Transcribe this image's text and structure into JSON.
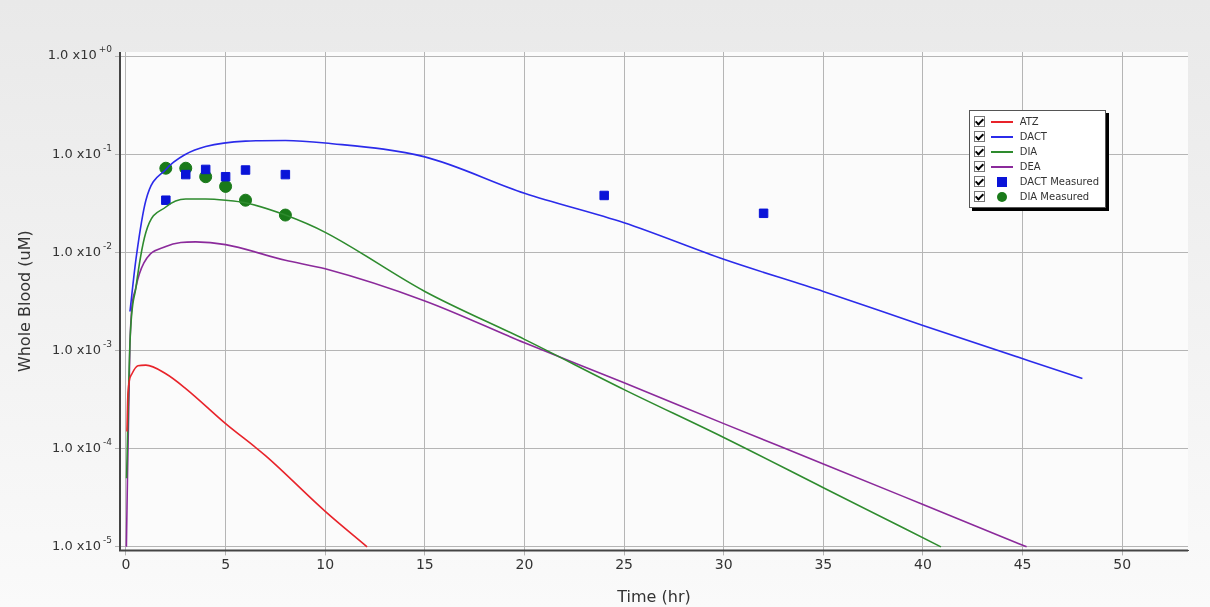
{
  "chart_data": {
    "type": "line",
    "xlabel": "Time (hr)",
    "ylabel": "Whole Blood (uM)",
    "log": "y",
    "grid": true,
    "legend": "top right",
    "line_style": "solid",
    "xlim": [
      -0.3,
      53.3
    ],
    "xticks": [
      0,
      5,
      10,
      15,
      20,
      25,
      30,
      35,
      40,
      45,
      50
    ],
    "ylim": [
      9.2e-06,
      1.1
    ],
    "yticks": [
      {
        "value": 1,
        "label": "1.0 x10$^{+0}$"
      },
      {
        "value": 0.1,
        "label": "1.0 x10$^{-1}$"
      },
      {
        "value": 0.01,
        "label": "1.0 x10$^{-2}$"
      },
      {
        "value": 0.001,
        "label": "1.0 x10$^{-3}$"
      },
      {
        "value": 0.0001,
        "label": "1.0 x10$^{-4}$"
      },
      {
        "value": 1e-05,
        "label": "1.0 x10$^{-5}$"
      }
    ],
    "series": [
      {
        "name": "ATZ",
        "marker": "none",
        "color": "#e8232a",
        "x": [
          0.05,
          0.1,
          0.3,
          0.6,
          1,
          2,
          3,
          5,
          7,
          10,
          12.1
        ],
        "values": [
          0.00015,
          0.00037,
          0.00058,
          0.0007,
          0.00071,
          0.00058,
          0.00041,
          0.00018,
          8.5e-05,
          2.3e-05,
          1e-05
        ]
      },
      {
        "name": "DACT",
        "marker": "none",
        "color": "#2b2bea",
        "x": [
          0.2,
          0.5,
          1,
          2,
          3,
          4,
          6,
          8,
          10,
          15,
          20,
          25,
          30,
          35,
          40,
          48
        ],
        "values": [
          0.0025,
          0.0085,
          0.034,
          0.07,
          0.1,
          0.12,
          0.136,
          0.138,
          0.13,
          0.094,
          0.04,
          0.02,
          0.0085,
          0.004,
          0.0018,
          0.00052
        ]
      },
      {
        "name": "DIA",
        "marker": "none",
        "color": "#2e8b2e",
        "x": [
          0.03,
          0.2,
          0.5,
          1,
          2,
          3,
          4,
          5,
          6,
          8,
          10,
          15,
          20,
          25,
          30,
          35,
          40.9
        ],
        "values": [
          5e-05,
          0.0012,
          0.0044,
          0.016,
          0.029,
          0.035,
          0.035,
          0.034,
          0.032,
          0.024,
          0.016,
          0.004,
          0.0013,
          0.0004,
          0.00013,
          4e-05,
          1e-05
        ]
      },
      {
        "name": "DEA",
        "marker": "none",
        "color": "#8b2a9b",
        "x": [
          0.02,
          0.2,
          0.5,
          0.9,
          2,
          3.5,
          5,
          8,
          10,
          15,
          20,
          25,
          30,
          35,
          40,
          45.2
        ],
        "values": [
          1e-05,
          0.0012,
          0.0044,
          0.0078,
          0.0115,
          0.0128,
          0.012,
          0.0083,
          0.0068,
          0.0032,
          0.0012,
          0.00047,
          0.00018,
          7e-05,
          2.7e-05,
          1e-05
        ]
      },
      {
        "name": "DACT Measured",
        "type": "scatter",
        "marker": "square",
        "color": "#0a14d8",
        "x": [
          2,
          3,
          4,
          5,
          6,
          8,
          24,
          32
        ],
        "values": [
          0.034,
          0.062,
          0.07,
          0.059,
          0.069,
          0.062,
          0.038,
          0.025
        ]
      },
      {
        "name": "DIA Measured",
        "type": "scatter",
        "marker": "circle",
        "color": "#1a7a1a",
        "x": [
          2,
          3,
          4,
          5,
          6,
          8
        ],
        "values": [
          0.072,
          0.072,
          0.059,
          0.047,
          0.034,
          0.024
        ]
      }
    ]
  }
}
